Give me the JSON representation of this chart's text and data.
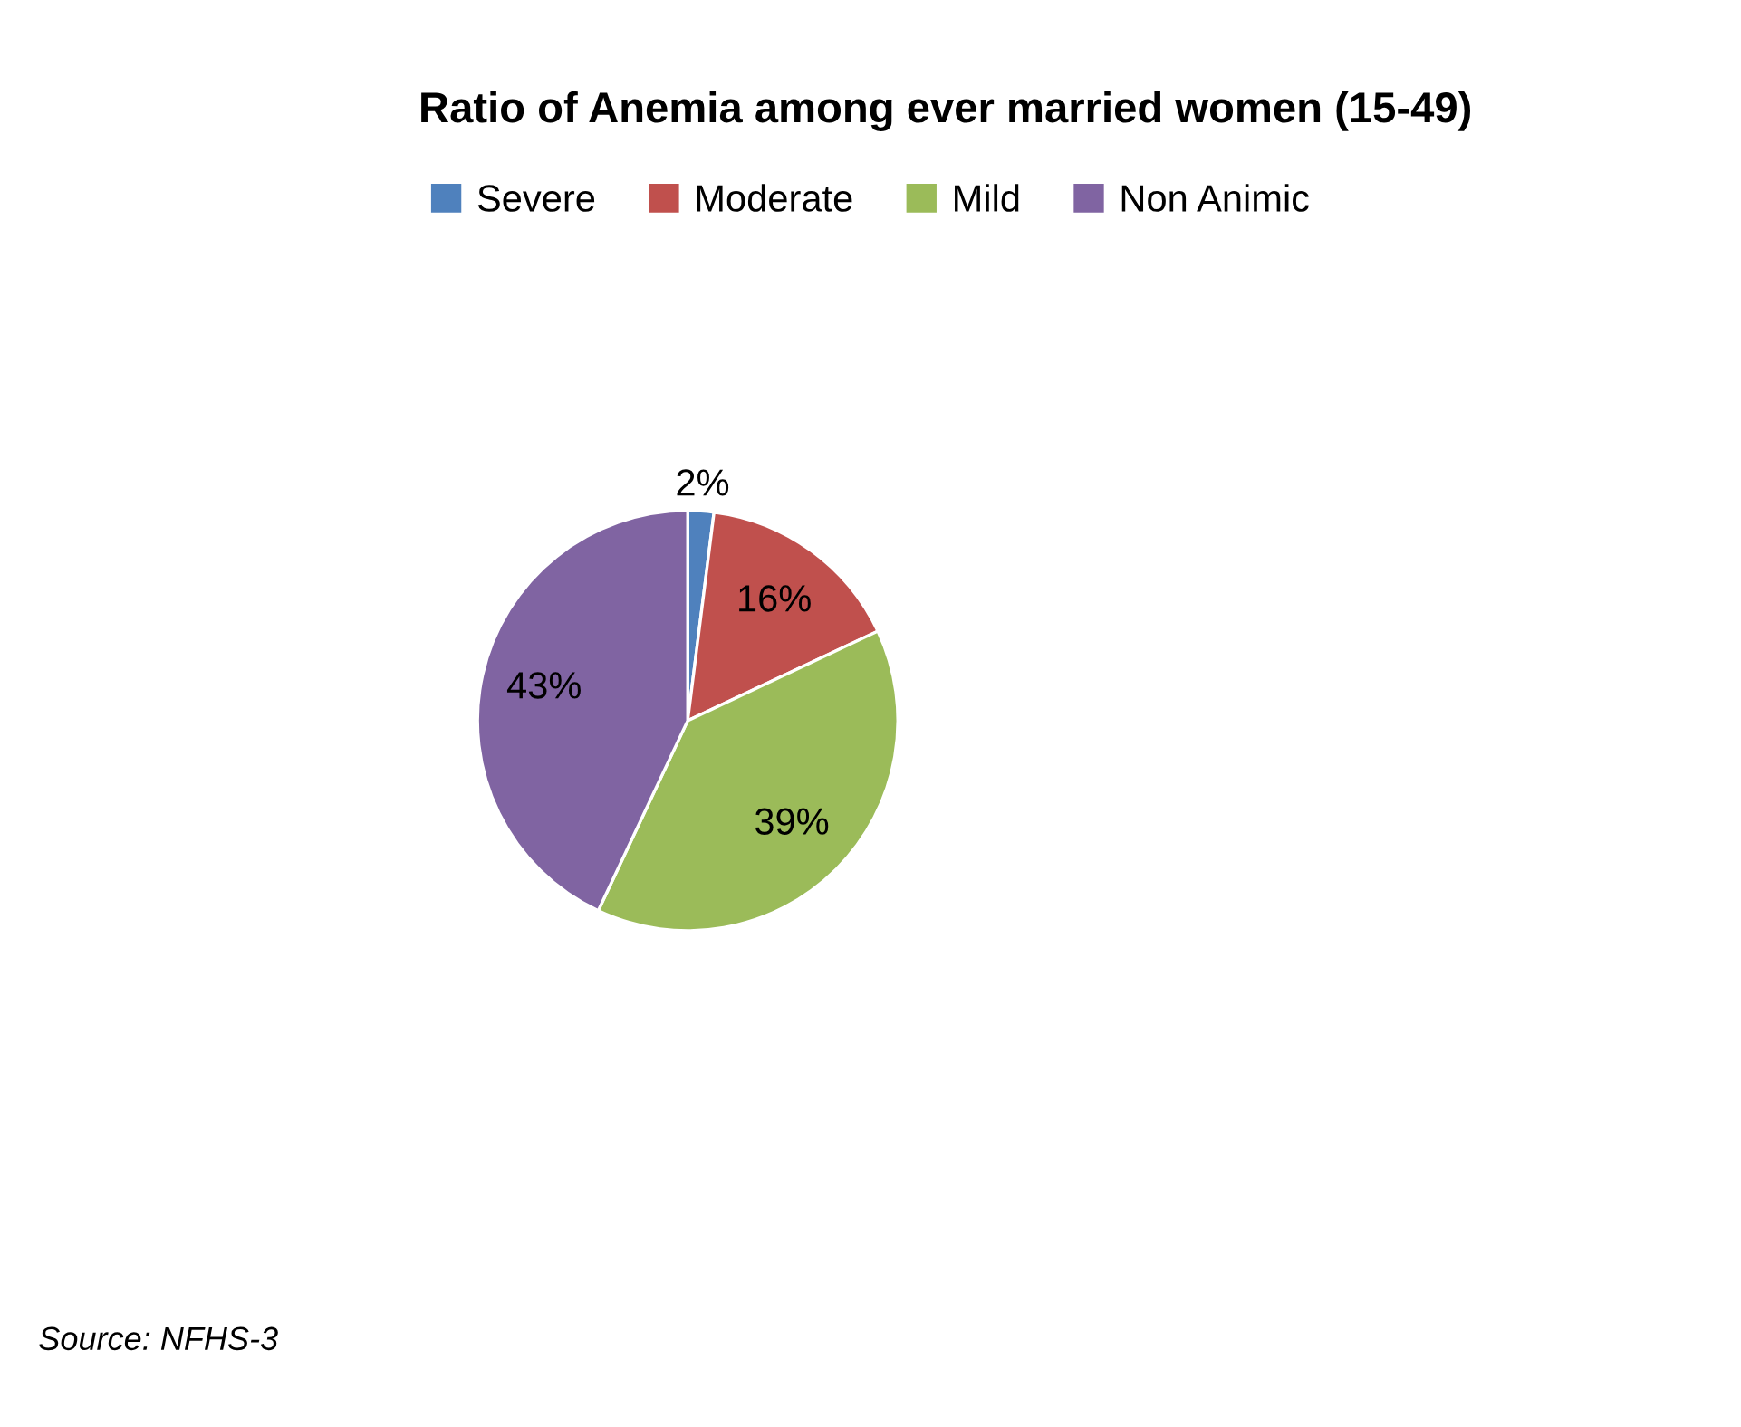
{
  "chart_data": {
    "type": "pie",
    "title": "Ratio of Anemia among ever married women (15-49)",
    "categories": [
      "Severe",
      "Moderate",
      "Mild",
      "Non Animic"
    ],
    "values": [
      2,
      16,
      39,
      43
    ],
    "value_labels": [
      "2%",
      "16%",
      "39%",
      "43%"
    ],
    "colors": [
      "#4f81bd",
      "#c0504d",
      "#9bbb59",
      "#8064a2"
    ],
    "legend": "top",
    "annotations": [
      "Source: NFHS-3"
    ]
  }
}
